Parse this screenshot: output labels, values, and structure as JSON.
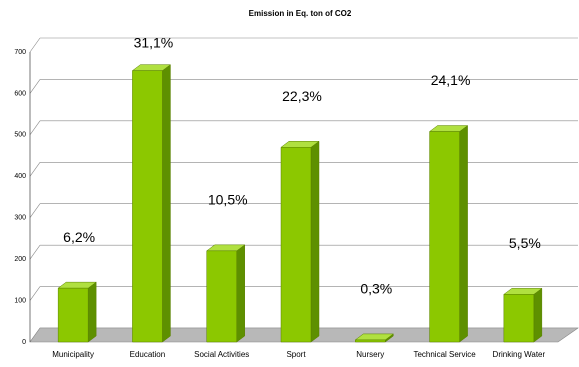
{
  "chart_data": {
    "type": "bar3d",
    "title": "Emission in Eq. ton of CO2",
    "categories": [
      "Municipality",
      "Education",
      "Social Activities",
      "Sport",
      "Nursery",
      "Technical Service",
      "Drinking Water"
    ],
    "values": [
      130,
      655,
      220,
      470,
      5,
      508,
      115
    ],
    "shares": [
      6.2,
      31.1,
      10.5,
      22.3,
      0.3,
      24.1,
      5.5
    ],
    "share_labels": [
      "6,2%",
      "31,1%",
      "10,5%",
      "22,3%",
      "0,3%",
      "24,1%",
      "5,5%"
    ],
    "color": "#8cc800",
    "ylim": [
      0,
      700
    ],
    "yticks": [
      0,
      100,
      200,
      300,
      400,
      500,
      600,
      700
    ],
    "grid": true
  }
}
